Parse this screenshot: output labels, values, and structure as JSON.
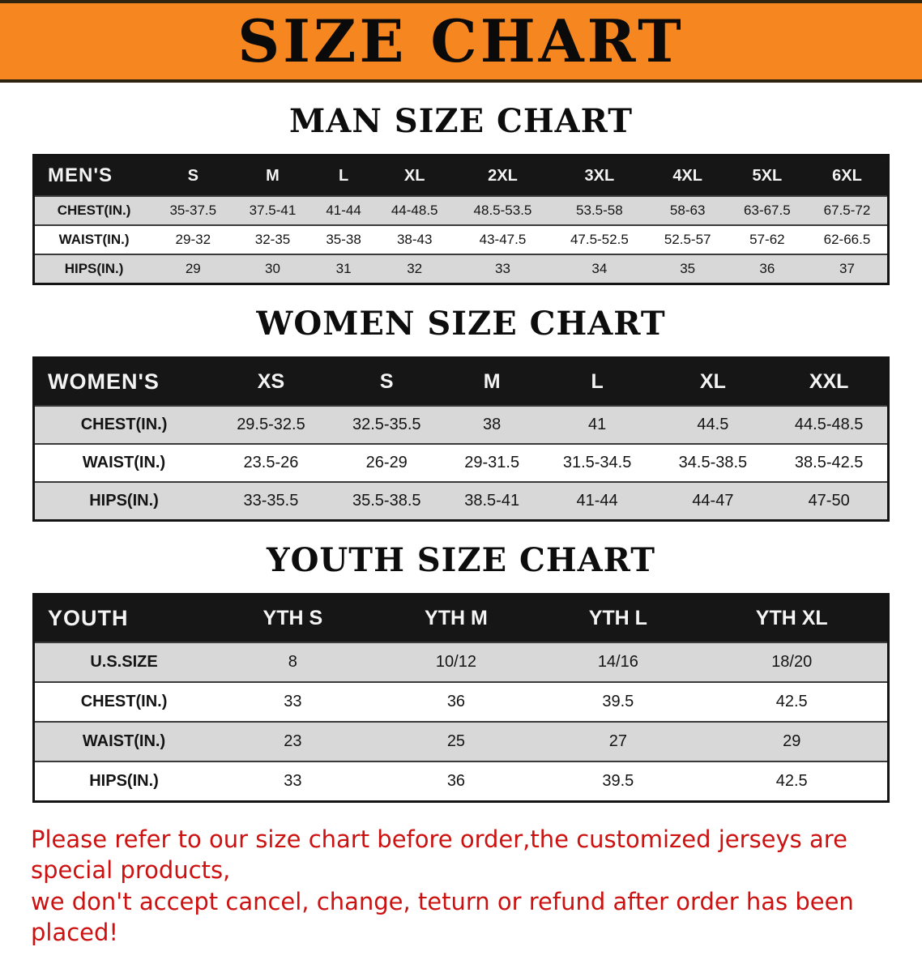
{
  "banner": {
    "title": "SIZE CHART",
    "background_color": "#f6861f",
    "text_color": "#0a0a0a"
  },
  "sections": {
    "men": {
      "heading": "MAN SIZE CHART",
      "header": [
        "MEN'S",
        "S",
        "M",
        "L",
        "XL",
        "2XL",
        "3XL",
        "4XL",
        "5XL",
        "6XL"
      ],
      "rows": [
        {
          "label": "CHEST(IN.)",
          "values": [
            "35-37.5",
            "37.5-41",
            "41-44",
            "44-48.5",
            "48.5-53.5",
            "53.5-58",
            "58-63",
            "63-67.5",
            "67.5-72"
          ]
        },
        {
          "label": "WAIST(IN.)",
          "values": [
            "29-32",
            "32-35",
            "35-38",
            "38-43",
            "43-47.5",
            "47.5-52.5",
            "52.5-57",
            "57-62",
            "62-66.5"
          ]
        },
        {
          "label": "HIPS(IN.)",
          "values": [
            "29",
            "30",
            "31",
            "32",
            "33",
            "34",
            "35",
            "36",
            "37"
          ]
        }
      ]
    },
    "women": {
      "heading": "WOMEN SIZE CHART",
      "header": [
        "WOMEN'S",
        "XS",
        "S",
        "M",
        "L",
        "XL",
        "XXL"
      ],
      "rows": [
        {
          "label": "CHEST(IN.)",
          "values": [
            "29.5-32.5",
            "32.5-35.5",
            "38",
            "41",
            "44.5",
            "44.5-48.5"
          ]
        },
        {
          "label": "WAIST(IN.)",
          "values": [
            "23.5-26",
            "26-29",
            "29-31.5",
            "31.5-34.5",
            "34.5-38.5",
            "38.5-42.5"
          ]
        },
        {
          "label": "HIPS(IN.)",
          "values": [
            "33-35.5",
            "35.5-38.5",
            "38.5-41",
            "41-44",
            "44-47",
            "47-50"
          ]
        }
      ]
    },
    "youth": {
      "heading": "YOUTH SIZE CHART",
      "header": [
        "YOUTH",
        "YTH S",
        "YTH M",
        "YTH L",
        "YTH XL"
      ],
      "rows": [
        {
          "label": "U.S.SIZE",
          "values": [
            "8",
            "10/12",
            "14/16",
            "18/20"
          ]
        },
        {
          "label": "CHEST(IN.)",
          "values": [
            "33",
            "36",
            "39.5",
            "42.5"
          ]
        },
        {
          "label": "WAIST(IN.)",
          "values": [
            "23",
            "25",
            "27",
            "29"
          ]
        },
        {
          "label": "HIPS(IN.)",
          "values": [
            "33",
            "36",
            "39.5",
            "42.5"
          ]
        }
      ]
    }
  },
  "disclaimer": {
    "line1": "Please refer to our size chart before order,the customized jerseys are special products,",
    "line2": "we don't accept cancel, change, teturn or refund after order has been placed!",
    "text_color": "#cc1110"
  }
}
